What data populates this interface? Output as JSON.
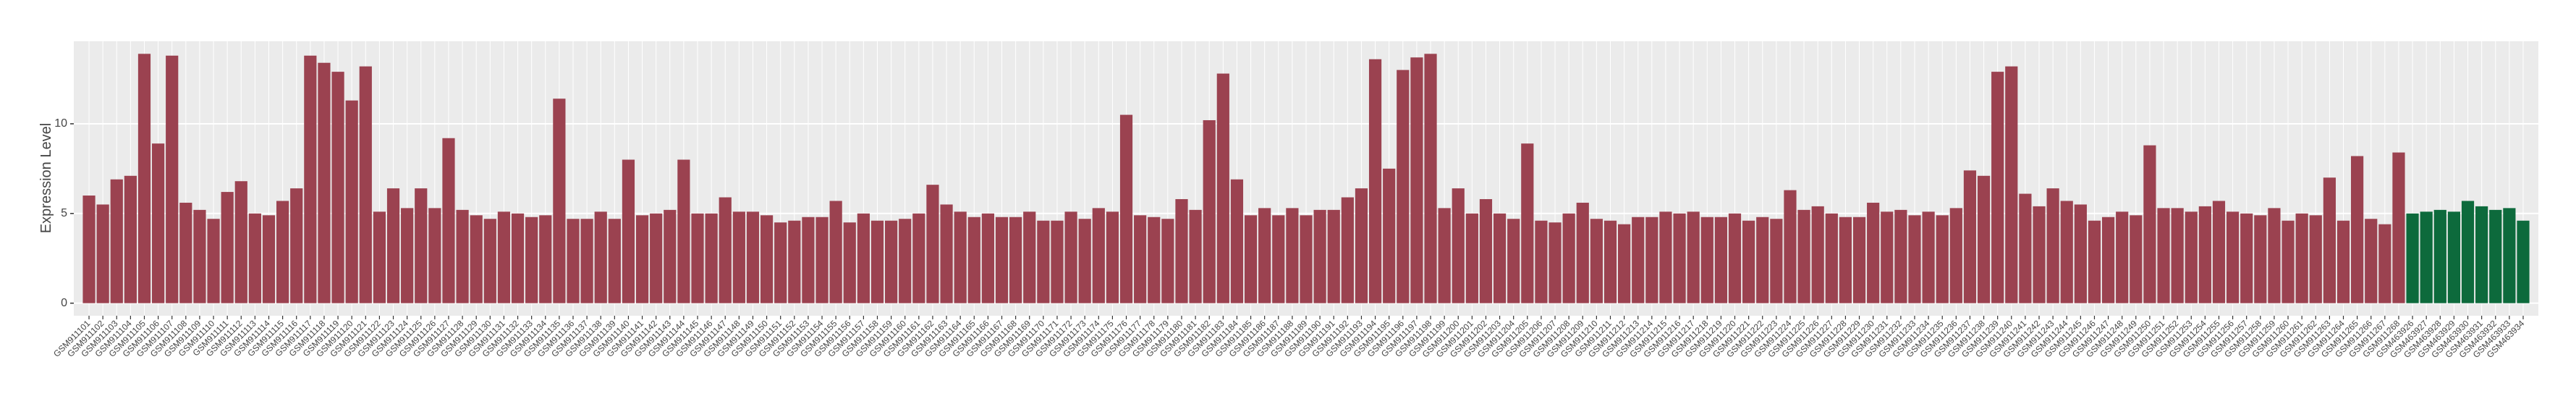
{
  "chart_data": {
    "type": "bar",
    "y_label": "Expression Level",
    "categories": [
      "GSM911101",
      "GSM911102",
      "GSM911103",
      "GSM911104",
      "GSM911105",
      "GSM911106",
      "GSM911107",
      "GSM911108",
      "GSM911109",
      "GSM911110",
      "GSM911111",
      "GSM911112",
      "GSM911113",
      "GSM911114",
      "GSM911115",
      "GSM911116",
      "GSM911117",
      "GSM911118",
      "GSM911119",
      "GSM911120",
      "GSM911121",
      "GSM911122",
      "GSM911123",
      "GSM911124",
      "GSM911125",
      "GSM911126",
      "GSM911127",
      "GSM911128",
      "GSM911129",
      "GSM911130",
      "GSM911131",
      "GSM911132",
      "GSM911133",
      "GSM911134",
      "GSM911135",
      "GSM911136",
      "GSM911137",
      "GSM911138",
      "GSM911139",
      "GSM911140",
      "GSM911141",
      "GSM911142",
      "GSM911143",
      "GSM911144",
      "GSM911145",
      "GSM911146",
      "GSM911147",
      "GSM911148",
      "GSM911149",
      "GSM911150",
      "GSM911151",
      "GSM911152",
      "GSM911153",
      "GSM911154",
      "GSM911155",
      "GSM911156",
      "GSM911157",
      "GSM911158",
      "GSM911159",
      "GSM911160",
      "GSM911161",
      "GSM911162",
      "GSM911163",
      "GSM911164",
      "GSM911165",
      "GSM911166",
      "GSM911167",
      "GSM911168",
      "GSM911169",
      "GSM911170",
      "GSM911171",
      "GSM911172",
      "GSM911173",
      "GSM911174",
      "GSM911175",
      "GSM911176",
      "GSM911177",
      "GSM911178",
      "GSM911179",
      "GSM911180",
      "GSM911181",
      "GSM911182",
      "GSM911183",
      "GSM911184",
      "GSM911185",
      "GSM911186",
      "GSM911187",
      "GSM911188",
      "GSM911189",
      "GSM911190",
      "GSM911191",
      "GSM911192",
      "GSM911193",
      "GSM911194",
      "GSM911195",
      "GSM911196",
      "GSM911197",
      "GSM911198",
      "GSM911199",
      "GSM911200",
      "GSM911201",
      "GSM911202",
      "GSM911203",
      "GSM911204",
      "GSM911205",
      "GSM911206",
      "GSM911207",
      "GSM911208",
      "GSM911209",
      "GSM911210",
      "GSM911211",
      "GSM911212",
      "GSM911213",
      "GSM911214",
      "GSM911215",
      "GSM911216",
      "GSM911217",
      "GSM911218",
      "GSM911219",
      "GSM911220",
      "GSM911221",
      "GSM911222",
      "GSM911223",
      "GSM911224",
      "GSM911225",
      "GSM911226",
      "GSM911227",
      "GSM911228",
      "GSM911229",
      "GSM911230",
      "GSM911231",
      "GSM911232",
      "GSM911233",
      "GSM911234",
      "GSM911235",
      "GSM911236",
      "GSM911237",
      "GSM911238",
      "GSM911239",
      "GSM911240",
      "GSM911241",
      "GSM911242",
      "GSM911243",
      "GSM911244",
      "GSM911245",
      "GSM911246",
      "GSM911247",
      "GSM911248",
      "GSM911249",
      "GSM911250",
      "GSM911251",
      "GSM911252",
      "GSM911253",
      "GSM911254",
      "GSM911255",
      "GSM911256",
      "GSM911257",
      "GSM911258",
      "GSM911259",
      "GSM911260",
      "GSM911261",
      "GSM911262",
      "GSM911263",
      "GSM911264",
      "GSM911265",
      "GSM911266",
      "GSM911267",
      "GSM911268",
      "GSM463926",
      "GSM463927",
      "GSM463928",
      "GSM463929",
      "GSM463930",
      "GSM463931",
      "GSM463932",
      "GSM463933",
      "GSM463934"
    ],
    "values": [
      6.0,
      5.5,
      6.9,
      7.1,
      13.9,
      8.9,
      13.8,
      5.6,
      5.2,
      4.7,
      6.2,
      6.8,
      5.0,
      4.9,
      5.7,
      6.4,
      13.8,
      13.4,
      12.9,
      11.3,
      13.2,
      5.1,
      6.4,
      5.3,
      6.4,
      5.3,
      9.2,
      5.2,
      4.9,
      4.7,
      5.1,
      5.0,
      4.8,
      4.9,
      11.4,
      4.7,
      4.7,
      5.1,
      4.7,
      8.0,
      4.9,
      5.0,
      5.2,
      8.0,
      5.0,
      5.0,
      5.9,
      5.1,
      5.1,
      4.9,
      4.5,
      4.6,
      4.8,
      4.8,
      5.7,
      4.5,
      5.0,
      4.6,
      4.6,
      4.7,
      5.0,
      6.6,
      5.5,
      5.1,
      4.8,
      5.0,
      4.8,
      4.8,
      5.1,
      4.6,
      4.6,
      5.1,
      4.7,
      5.3,
      5.1,
      10.5,
      4.9,
      4.8,
      4.7,
      5.8,
      5.2,
      10.2,
      12.8,
      6.9,
      4.9,
      5.3,
      4.9,
      5.3,
      4.9,
      5.2,
      5.2,
      5.9,
      6.4,
      13.6,
      7.5,
      13.0,
      13.7,
      13.9,
      5.3,
      6.4,
      5.0,
      5.8,
      5.0,
      4.7,
      8.9,
      4.6,
      4.5,
      5.0,
      5.6,
      4.7,
      4.6,
      4.4,
      4.8,
      4.8,
      5.1,
      5.0,
      5.1,
      4.8,
      4.8,
      5.0,
      4.6,
      4.8,
      4.7,
      6.3,
      5.2,
      5.4,
      5.0,
      4.8,
      4.8,
      5.6,
      5.1,
      5.2,
      4.9,
      5.1,
      4.9,
      5.3,
      7.4,
      7.1,
      12.9,
      13.2,
      6.1,
      5.4,
      6.4,
      5.7,
      5.5,
      4.6,
      4.8,
      5.1,
      4.9,
      8.8,
      5.3,
      5.3,
      5.1,
      5.4,
      5.7,
      5.1,
      5.0,
      4.9,
      5.3,
      4.6,
      5.0,
      4.9,
      7.0,
      4.6,
      8.2,
      4.7,
      4.4,
      8.4,
      5.0,
      5.1,
      5.2,
      5.1,
      5.7,
      5.4,
      5.2,
      5.3,
      4.6
    ],
    "colors": [
      "#9b4250",
      "#9b4250",
      "#9b4250",
      "#9b4250",
      "#9b4250",
      "#9b4250",
      "#9b4250",
      "#9b4250",
      "#9b4250",
      "#9b4250",
      "#9b4250",
      "#9b4250",
      "#9b4250",
      "#9b4250",
      "#9b4250",
      "#9b4250",
      "#9b4250",
      "#9b4250",
      "#9b4250",
      "#9b4250",
      "#9b4250",
      "#9b4250",
      "#9b4250",
      "#9b4250",
      "#9b4250",
      "#9b4250",
      "#9b4250",
      "#9b4250",
      "#9b4250",
      "#9b4250",
      "#9b4250",
      "#9b4250",
      "#9b4250",
      "#9b4250",
      "#9b4250",
      "#9b4250",
      "#9b4250",
      "#9b4250",
      "#9b4250",
      "#9b4250",
      "#9b4250",
      "#9b4250",
      "#9b4250",
      "#9b4250",
      "#9b4250",
      "#9b4250",
      "#9b4250",
      "#9b4250",
      "#9b4250",
      "#9b4250",
      "#9b4250",
      "#9b4250",
      "#9b4250",
      "#9b4250",
      "#9b4250",
      "#9b4250",
      "#9b4250",
      "#9b4250",
      "#9b4250",
      "#9b4250",
      "#9b4250",
      "#9b4250",
      "#9b4250",
      "#9b4250",
      "#9b4250",
      "#9b4250",
      "#9b4250",
      "#9b4250",
      "#9b4250",
      "#9b4250",
      "#9b4250",
      "#9b4250",
      "#9b4250",
      "#9b4250",
      "#9b4250",
      "#9b4250",
      "#9b4250",
      "#9b4250",
      "#9b4250",
      "#9b4250",
      "#9b4250",
      "#9b4250",
      "#9b4250",
      "#9b4250",
      "#9b4250",
      "#9b4250",
      "#9b4250",
      "#9b4250",
      "#9b4250",
      "#9b4250",
      "#9b4250",
      "#9b4250",
      "#9b4250",
      "#9b4250",
      "#9b4250",
      "#9b4250",
      "#9b4250",
      "#9b4250",
      "#9b4250",
      "#9b4250",
      "#9b4250",
      "#9b4250",
      "#9b4250",
      "#9b4250",
      "#9b4250",
      "#9b4250",
      "#9b4250",
      "#9b4250",
      "#9b4250",
      "#9b4250",
      "#9b4250",
      "#9b4250",
      "#9b4250",
      "#9b4250",
      "#9b4250",
      "#9b4250",
      "#9b4250",
      "#9b4250",
      "#9b4250",
      "#9b4250",
      "#9b4250",
      "#9b4250",
      "#9b4250",
      "#9b4250",
      "#9b4250",
      "#9b4250",
      "#9b4250",
      "#9b4250",
      "#9b4250",
      "#9b4250",
      "#9b4250",
      "#9b4250",
      "#9b4250",
      "#9b4250",
      "#9b4250",
      "#9b4250",
      "#9b4250",
      "#9b4250",
      "#9b4250",
      "#9b4250",
      "#9b4250",
      "#9b4250",
      "#9b4250",
      "#9b4250",
      "#9b4250",
      "#9b4250",
      "#9b4250",
      "#9b4250",
      "#9b4250",
      "#9b4250",
      "#9b4250",
      "#9b4250",
      "#9b4250",
      "#9b4250",
      "#9b4250",
      "#9b4250",
      "#9b4250",
      "#9b4250",
      "#9b4250",
      "#9b4250",
      "#9b4250",
      "#9b4250",
      "#9b4250",
      "#9b4250",
      "#9b4250",
      "#9b4250",
      "#9b4250",
      "#9b4250",
      "#0d6a3c",
      "#0d6a3c",
      "#0d6a3c",
      "#0d6a3c",
      "#0d6a3c",
      "#0d6a3c",
      "#0d6a3c",
      "#0d6a3c",
      "#0d6a3c"
    ],
    "ylim": [
      -0.7,
      14.6
    ],
    "yticks": [
      0,
      5,
      10
    ],
    "grid": true
  }
}
